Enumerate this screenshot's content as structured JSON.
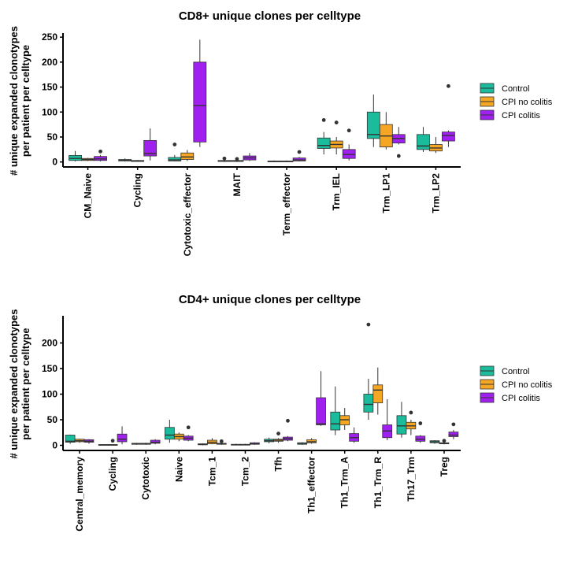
{
  "chart_data": [
    {
      "type": "box",
      "title": "CD8+ unique clones per celltype",
      "ylabel_line1": "# unique expanded clonotypes",
      "ylabel_line2": "per patient per celltype",
      "ylim": [
        -10,
        255
      ],
      "yticks": [
        0,
        50,
        100,
        150,
        200,
        250
      ],
      "categories": [
        "CM_Naive",
        "Cycling",
        "Cytotoxic_effector",
        "MAIT",
        "Term_effector",
        "Trm_IEL",
        "Trm_LP1",
        "Trm_LP2"
      ],
      "series": [
        {
          "name": "Control",
          "boxes": [
            {
              "min": 1,
              "q1": 3,
              "median": 7,
              "q3": 13,
              "max": 22,
              "outliers": []
            },
            {
              "min": 1,
              "q1": 2,
              "median": 3,
              "q3": 5,
              "max": 7,
              "outliers": []
            },
            {
              "min": 1,
              "q1": 2,
              "median": 4,
              "q3": 9,
              "max": 14,
              "outliers": [
                35
              ]
            },
            {
              "min": 0,
              "q1": 1,
              "median": 2,
              "q3": 3,
              "max": 4,
              "outliers": [
                7
              ]
            },
            {
              "min": 0,
              "q1": 0.5,
              "median": 1,
              "q3": 2,
              "max": 3,
              "outliers": []
            },
            {
              "min": 15,
              "q1": 27,
              "median": 33,
              "q3": 48,
              "max": 60,
              "outliers": [
                84
              ]
            },
            {
              "min": 30,
              "q1": 47,
              "median": 55,
              "q3": 100,
              "max": 135,
              "outliers": []
            },
            {
              "min": 20,
              "q1": 25,
              "median": 32,
              "q3": 55,
              "max": 70,
              "outliers": []
            }
          ]
        },
        {
          "name": "CPI no colitis",
          "boxes": [
            {
              "min": 2,
              "q1": 3,
              "median": 5,
              "q3": 7,
              "max": 8,
              "outliers": []
            },
            {
              "min": 1,
              "q1": 1,
              "median": 2,
              "q3": 3,
              "max": 4,
              "outliers": []
            },
            {
              "min": 2,
              "q1": 5,
              "median": 10,
              "q3": 18,
              "max": 24,
              "outliers": []
            },
            {
              "min": 0,
              "q1": 1,
              "median": 2,
              "q3": 3,
              "max": 3,
              "outliers": [
                6
              ]
            },
            {
              "min": 0,
              "q1": 0.5,
              "median": 1,
              "q3": 2,
              "max": 3,
              "outliers": []
            },
            {
              "min": 15,
              "q1": 28,
              "median": 35,
              "q3": 42,
              "max": 50,
              "outliers": [
                79
              ]
            },
            {
              "min": 25,
              "q1": 30,
              "median": 52,
              "q3": 75,
              "max": 100,
              "outliers": []
            },
            {
              "min": 18,
              "q1": 22,
              "median": 28,
              "q3": 35,
              "max": 50,
              "outliers": []
            }
          ]
        },
        {
          "name": "CPI colitis",
          "boxes": [
            {
              "min": 1,
              "q1": 3,
              "median": 6,
              "q3": 11,
              "max": 14,
              "outliers": [
                21
              ]
            },
            {
              "min": 3,
              "q1": 12,
              "median": 17,
              "q3": 43,
              "max": 67,
              "outliers": []
            },
            {
              "min": 30,
              "q1": 40,
              "median": 113,
              "q3": 200,
              "max": 245,
              "outliers": []
            },
            {
              "min": 2,
              "q1": 4,
              "median": 8,
              "q3": 12,
              "max": 18,
              "outliers": []
            },
            {
              "min": 1,
              "q1": 2,
              "median": 4,
              "q3": 8,
              "max": 10,
              "outliers": [
                20
              ]
            },
            {
              "min": 3,
              "q1": 7,
              "median": 15,
              "q3": 25,
              "max": 35,
              "outliers": [
                63
              ]
            },
            {
              "min": 35,
              "q1": 38,
              "median": 47,
              "q3": 55,
              "max": 70,
              "outliers": [
                12
              ]
            },
            {
              "min": 30,
              "q1": 42,
              "median": 53,
              "q3": 60,
              "max": 63,
              "outliers": [
                152
              ]
            }
          ]
        }
      ]
    },
    {
      "type": "box",
      "title": "CD4+ unique clones per celltype",
      "ylabel_line1": "# unique expanded clonotypes",
      "ylabel_line2": "per patient per celltype",
      "ylim": [
        -10,
        250
      ],
      "yticks": [
        0,
        50,
        100,
        150,
        200
      ],
      "categories": [
        "Central_memory",
        "Cycling",
        "Cytotoxic",
        "Naive",
        "Tcm_1",
        "Tcm_2",
        "Tfh",
        "Th1_effector",
        "Th1_Trm_A",
        "Th1_Trm_R",
        "Th17_Trm",
        "Treg"
      ],
      "series": [
        {
          "name": "Control",
          "boxes": [
            {
              "min": 3,
              "q1": 6,
              "median": 8,
              "q3": 20,
              "max": 21,
              "outliers": []
            },
            {
              "min": 0,
              "q1": 0.5,
              "median": 1,
              "q3": 1.5,
              "max": 2,
              "outliers": []
            },
            {
              "min": 1,
              "q1": 2,
              "median": 3,
              "q3": 4,
              "max": 5,
              "outliers": []
            },
            {
              "min": 5,
              "q1": 12,
              "median": 20,
              "q3": 35,
              "max": 50,
              "outliers": []
            },
            {
              "min": 0,
              "q1": 1,
              "median": 2,
              "q3": 3,
              "max": 4,
              "outliers": []
            },
            {
              "min": 0,
              "q1": 0.5,
              "median": 1,
              "q3": 2,
              "max": 3,
              "outliers": []
            },
            {
              "min": 4,
              "q1": 7,
              "median": 9,
              "q3": 12,
              "max": 15,
              "outliers": []
            },
            {
              "min": 1,
              "q1": 2,
              "median": 4,
              "q3": 5,
              "max": 6,
              "outliers": []
            },
            {
              "min": 20,
              "q1": 30,
              "median": 42,
              "q3": 65,
              "max": 115,
              "outliers": []
            },
            {
              "min": 50,
              "q1": 65,
              "median": 80,
              "q3": 100,
              "max": 130,
              "outliers": [
                236
              ]
            },
            {
              "min": 15,
              "q1": 22,
              "median": 38,
              "q3": 58,
              "max": 85,
              "outliers": []
            },
            {
              "min": 3,
              "q1": 5,
              "median": 7,
              "q3": 9,
              "max": 10,
              "outliers": []
            }
          ]
        },
        {
          "name": "CPI no colitis",
          "boxes": [
            {
              "min": 5,
              "q1": 7,
              "median": 9,
              "q3": 12,
              "max": 13,
              "outliers": []
            },
            {
              "min": 0,
              "q1": 0.5,
              "median": 1,
              "q3": 1.5,
              "max": 2,
              "outliers": [
                9
              ]
            },
            {
              "min": 1,
              "q1": 2,
              "median": 3,
              "q3": 4,
              "max": 5,
              "outliers": []
            },
            {
              "min": 8,
              "q1": 12,
              "median": 17,
              "q3": 22,
              "max": 25,
              "outliers": []
            },
            {
              "min": 2,
              "q1": 3,
              "median": 6,
              "q3": 10,
              "max": 14,
              "outliers": []
            },
            {
              "min": 0,
              "q1": 0.5,
              "median": 1,
              "q3": 2,
              "max": 3,
              "outliers": []
            },
            {
              "min": 5,
              "q1": 8,
              "median": 10,
              "q3": 12,
              "max": 14,
              "outliers": [
                23
              ]
            },
            {
              "min": 3,
              "q1": 5,
              "median": 7,
              "q3": 11,
              "max": 14,
              "outliers": []
            },
            {
              "min": 30,
              "q1": 40,
              "median": 50,
              "q3": 58,
              "max": 73,
              "outliers": []
            },
            {
              "min": 60,
              "q1": 83,
              "median": 108,
              "q3": 118,
              "max": 152,
              "outliers": []
            },
            {
              "min": 20,
              "q1": 32,
              "median": 38,
              "q3": 45,
              "max": 50,
              "outliers": [
                64
              ]
            },
            {
              "min": 2,
              "q1": 3,
              "median": 4,
              "q3": 5,
              "max": 6,
              "outliers": [
                9
              ]
            }
          ]
        },
        {
          "name": "CPI colitis",
          "boxes": [
            {
              "min": 3,
              "q1": 6,
              "median": 8,
              "q3": 11,
              "max": 12,
              "outliers": []
            },
            {
              "min": 2,
              "q1": 7,
              "median": 12,
              "q3": 22,
              "max": 37,
              "outliers": []
            },
            {
              "min": 2,
              "q1": 4,
              "median": 6,
              "q3": 10,
              "max": 12,
              "outliers": []
            },
            {
              "min": 8,
              "q1": 10,
              "median": 14,
              "q3": 18,
              "max": 20,
              "outliers": [
                35
              ]
            },
            {
              "min": 1,
              "q1": 2,
              "median": 3,
              "q3": 4,
              "max": 5,
              "outliers": [
                8
              ]
            },
            {
              "min": 1,
              "q1": 2,
              "median": 3,
              "q3": 5,
              "max": 6,
              "outliers": []
            },
            {
              "min": 8,
              "q1": 10,
              "median": 13,
              "q3": 16,
              "max": 18,
              "outliers": [
                48
              ]
            },
            {
              "min": 38,
              "q1": 40,
              "median": 42,
              "q3": 93,
              "max": 145,
              "outliers": []
            },
            {
              "min": 5,
              "q1": 8,
              "median": 15,
              "q3": 23,
              "max": 35,
              "outliers": []
            },
            {
              "min": 10,
              "q1": 15,
              "median": 28,
              "q3": 40,
              "max": 90,
              "outliers": []
            },
            {
              "min": 5,
              "q1": 8,
              "median": 12,
              "q3": 18,
              "max": 20,
              "outliers": [
                43
              ]
            },
            {
              "min": 12,
              "q1": 17,
              "median": 20,
              "q3": 26,
              "max": 30,
              "outliers": [
                41
              ]
            }
          ]
        }
      ]
    }
  ],
  "legend": {
    "placement": "right",
    "items": [
      {
        "label": "Control",
        "color": "#1ABC9C"
      },
      {
        "label": "CPI no colitis",
        "color": "#F5A623"
      },
      {
        "label": "CPI colitis",
        "color": "#A020F0"
      }
    ]
  },
  "colors": {
    "Control": "#1ABC9C",
    "CPI no colitis": "#F5A623",
    "CPI colitis": "#A020F0",
    "median_line": "#333333",
    "outlier": "#333333"
  }
}
